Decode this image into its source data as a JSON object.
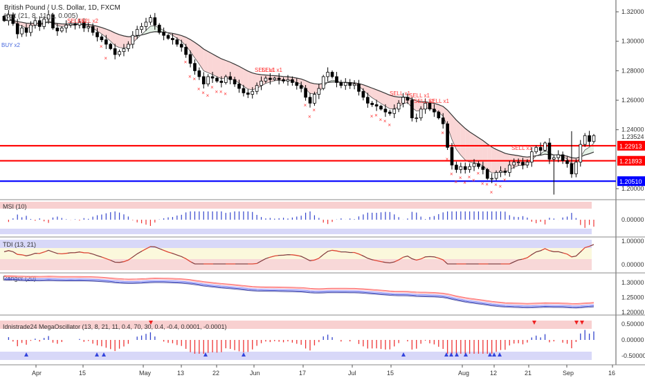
{
  "header": {
    "title": "British Pound / U.S. Dollar, 1D, FXCM",
    "indicator": "Kelt (21, 8, 11, 1, 0.005)"
  },
  "colors": {
    "bull": "#ffffff",
    "bear": "#000000",
    "red_level": "#ff0000",
    "blue_level": "#0000ff",
    "cloud": "#f8c8c8",
    "signal": "#ff3333",
    "up_arrow": "#3344ee"
  },
  "chart_data": [
    {
      "type": "candlestick",
      "title": "British Pound / U.S. Dollar, 1D, FXCM",
      "ylim": [
        1.193,
        1.328
      ],
      "y_ticks": [
        "1.32000",
        "1.30000",
        "1.28000",
        "1.26000",
        "1.24000",
        "1.20000"
      ],
      "x_ticks": [
        "Apr",
        "15",
        "May",
        "13",
        "22",
        "Jun",
        "17",
        "Jul",
        "15",
        "Aug",
        "12",
        "21",
        "Sep",
        "16"
      ],
      "current_price": "1.23524",
      "levels": [
        {
          "value": 1.22913,
          "label": "1.22913",
          "color": "#ff0000"
        },
        {
          "value": 1.21893,
          "label": "1.21893",
          "color": "#ff0000"
        },
        {
          "value": 1.2051,
          "label": "1.20510",
          "color": "#0000ff"
        }
      ],
      "close": [
        1.314,
        1.318,
        1.312,
        1.305,
        1.309,
        1.306,
        1.311,
        1.314,
        1.31,
        1.315,
        1.318,
        1.309,
        1.307,
        1.309,
        1.311,
        1.312,
        1.311,
        1.313,
        1.309,
        1.31,
        1.306,
        1.303,
        1.301,
        1.298,
        1.295,
        1.291,
        1.293,
        1.295,
        1.298,
        1.304,
        1.308,
        1.31,
        1.313,
        1.316,
        1.311,
        1.306,
        1.304,
        1.302,
        1.301,
        1.298,
        1.296,
        1.291,
        1.285,
        1.28,
        1.276,
        1.271,
        1.276,
        1.275,
        1.273,
        1.272,
        1.276,
        1.274,
        1.271,
        1.268,
        1.265,
        1.264,
        1.266,
        1.27,
        1.273,
        1.275,
        1.274,
        1.275,
        1.274,
        1.273,
        1.274,
        1.272,
        1.27,
        1.268,
        1.262,
        1.258,
        1.264,
        1.268,
        1.276,
        1.279,
        1.276,
        1.272,
        1.27,
        1.272,
        1.27,
        1.271,
        1.266,
        1.262,
        1.258,
        1.257,
        1.256,
        1.254,
        1.252,
        1.251,
        1.254,
        1.258,
        1.262,
        1.26,
        1.248,
        1.248,
        1.254,
        1.258,
        1.254,
        1.252,
        1.248,
        1.244,
        1.228,
        1.216,
        1.213,
        1.215,
        1.213,
        1.215,
        1.217,
        1.215,
        1.213,
        1.207,
        1.207,
        1.211,
        1.212,
        1.211,
        1.216,
        1.218,
        1.218,
        1.216,
        1.218,
        1.225,
        1.228,
        1.226,
        1.231,
        1.22,
        1.221,
        1.223,
        1.219,
        1.217,
        1.21,
        1.218,
        1.23,
        1.236,
        1.232,
        1.236
      ],
      "signals": [
        "BUY x2",
        "SELL x2",
        "SELL x2",
        "SELL x1",
        "SELL x1",
        "SELL x1",
        "SELL x1",
        "SELL x1",
        "SELL x1",
        "SELL x1"
      ]
    },
    {
      "type": "bar",
      "title": "MSI (10)",
      "y_ticks": [
        "0.00000"
      ]
    },
    {
      "type": "line",
      "title": "TDI (13, 21)",
      "y_ticks": [
        "1.00000",
        "0.00000"
      ]
    },
    {
      "type": "line",
      "title": "Ranger (20)",
      "y_ticks": [
        "1.30000",
        "1.25000",
        "1.20000"
      ]
    },
    {
      "type": "bar",
      "title": "Idnistrade24 MegaOscillator (13, 8, 21, 11, 0.4, 70, 30, 0.4, -0.4, 0.0001, -0.0001)",
      "y_ticks": [
        "0.50000",
        "0.00000",
        "-0.50000"
      ]
    }
  ]
}
